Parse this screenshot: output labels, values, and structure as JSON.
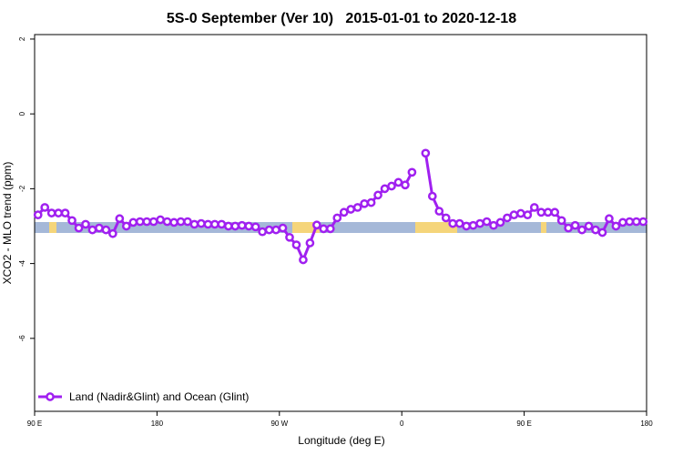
{
  "chart_data": {
    "type": "line",
    "title": "5S-0 September (Ver 10)   2015-01-01 to 2020-12-18",
    "x_label": "Longitude (deg E)",
    "y_label": "XCO2 - MLO trend (ppm)",
    "x": [
      92.5,
      97.5,
      102.5,
      107.5,
      112.5,
      117.5,
      122.5,
      127.5,
      132.5,
      137.5,
      142.5,
      147.5,
      152.5,
      157.5,
      162.5,
      167.5,
      172.5,
      177.5,
      182.5,
      187.5,
      192.5,
      197.5,
      202.5,
      207.5,
      212.5,
      217.5,
      222.5,
      227.5,
      232.5,
      237.5,
      242.5,
      247.5,
      252.5,
      257.5,
      262.5,
      267.5,
      272.5,
      277.5,
      282.5,
      287.5,
      292.5,
      297.5,
      302.5,
      307.5,
      312.5,
      317.5,
      322.5,
      327.5,
      332.5,
      337.5,
      342.5,
      347.5,
      352.5,
      357.5,
      362.5,
      367.5,
      372.5,
      377.5,
      382.5,
      387.5,
      392.5,
      397.5,
      402.5,
      407.5,
      412.5,
      417.5,
      422.5,
      427.5,
      432.5,
      437.5,
      442.5,
      447.5,
      452.5,
      457.5,
      462.5,
      467.5,
      472.5,
      477.5,
      482.5,
      487.5,
      492.5,
      497.5,
      502.5,
      507.5,
      512.5,
      517.5,
      522.5,
      527.5,
      532.5,
      537.5
    ],
    "series": [
      {
        "name": "Land (Nadir&Glint) and Ocean (Glint)",
        "color": "#a020f0",
        "values": [
          -2.7,
          -2.5,
          -2.65,
          -2.65,
          -2.65,
          -2.85,
          -3.05,
          -2.95,
          -3.1,
          -3.05,
          -3.1,
          -3.2,
          -2.8,
          -3.0,
          -2.9,
          -2.88,
          -2.88,
          -2.88,
          -2.83,
          -2.88,
          -2.9,
          -2.88,
          -2.88,
          -2.95,
          -2.93,
          -2.95,
          -2.95,
          -2.95,
          -3.0,
          -3.0,
          -2.98,
          -3.0,
          -3.02,
          -3.15,
          -3.1,
          -3.1,
          -3.05,
          -3.3,
          -3.5,
          -3.9,
          -3.45,
          -2.97,
          -3.07,
          -3.07,
          -2.78,
          -2.63,
          -2.55,
          -2.5,
          -2.4,
          -2.37,
          -2.17,
          -2.0,
          -1.93,
          -1.83,
          -1.9,
          -1.56,
          null,
          -1.05,
          -2.2,
          -2.6,
          -2.78,
          -2.93,
          -2.93,
          -3.0,
          -2.98,
          -2.93,
          -2.88,
          -2.98,
          -2.9,
          -2.78,
          -2.7,
          -2.66,
          -2.7,
          -2.5,
          -2.63,
          -2.63,
          -2.63,
          -2.85,
          -3.05,
          -2.98,
          -3.1,
          -3.0,
          -3.1,
          -3.17,
          -2.8,
          -3.0,
          -2.9,
          -2.88,
          -2.88,
          -2.88
        ]
      }
    ],
    "xlim": [
      90,
      540
    ],
    "xticks": [
      {
        "value": 90,
        "label": "90 E"
      },
      {
        "value": 180,
        "label": "180"
      },
      {
        "value": 270,
        "label": "90 W"
      },
      {
        "value": 360,
        "label": "0"
      },
      {
        "value": 450,
        "label": "90 E"
      },
      {
        "value": 540,
        "label": "180"
      }
    ],
    "ylim": [
      -7.95,
      2.12
    ],
    "yticks": [
      2,
      0,
      -2,
      -4,
      -6
    ],
    "legend": "bottom-left"
  }
}
